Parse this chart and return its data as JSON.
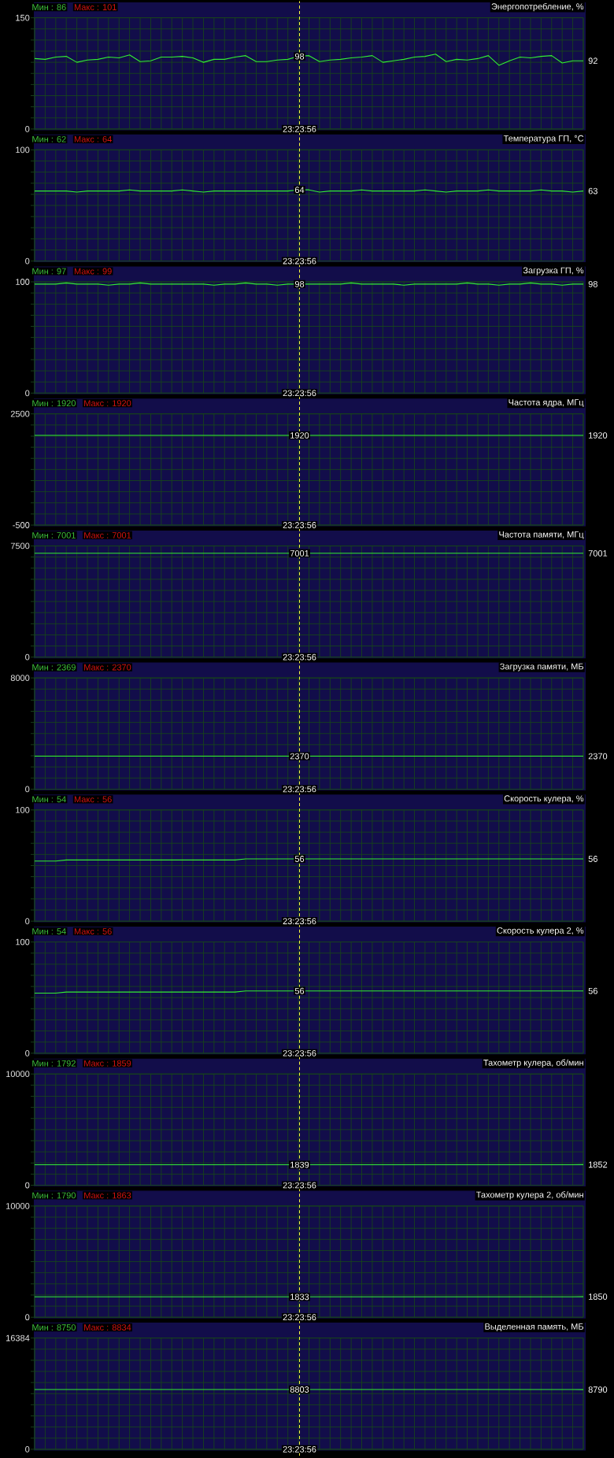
{
  "chart_data": [
    {
      "type": "line",
      "title": "Энергопотребление, %",
      "categories": [
        null,
        null,
        null,
        null,
        null,
        null,
        null,
        null,
        null,
        null,
        null,
        null,
        null,
        null,
        null,
        null,
        null,
        null,
        null,
        null,
        null,
        null,
        null,
        null,
        null,
        null,
        null,
        null,
        null,
        null,
        null,
        null,
        null,
        null,
        null,
        null,
        null,
        null,
        null,
        null,
        null,
        null,
        null,
        null,
        null,
        null,
        null,
        null,
        null,
        null,
        null,
        null,
        null
      ],
      "values": [
        95,
        94,
        97,
        98,
        90,
        93,
        94,
        97,
        96,
        100,
        91,
        92,
        97,
        97,
        98,
        96,
        90,
        94,
        94,
        97,
        99,
        91,
        91,
        93,
        94,
        98,
        99,
        91,
        93,
        94,
        96,
        97,
        99,
        90,
        92,
        94,
        97,
        98,
        101,
        91,
        94,
        93,
        95,
        99,
        86,
        92,
        97,
        96,
        98,
        99,
        89,
        92,
        92
      ],
      "color": "#33ee33",
      "ylim": [
        0,
        150
      ],
      "yticks": [
        0,
        {
          "value": 15,
          "label": null
        },
        {
          "value": 30,
          "label": null
        },
        {
          "value": 45,
          "label": null
        },
        {
          "value": 60,
          "label": null
        },
        {
          "value": 75,
          "label": null
        },
        {
          "value": 90,
          "label": null
        },
        {
          "value": 105,
          "label": null
        },
        {
          "value": 120,
          "label": null
        },
        {
          "value": 135,
          "label": null
        },
        150
      ],
      "grid": true,
      "annotations": [
        "Мин : 86",
        "Макс : 101",
        {
          "text": "98",
          "y": 98
        },
        "92",
        "23:23:56"
      ]
    },
    {
      "type": "line",
      "title": "Температура ГП, °C",
      "categories": [
        null,
        null,
        null,
        null,
        null,
        null,
        null,
        null,
        null,
        null,
        null,
        null,
        null,
        null,
        null,
        null,
        null,
        null,
        null,
        null,
        null,
        null,
        null,
        null,
        null,
        null,
        null,
        null,
        null,
        null,
        null,
        null,
        null,
        null,
        null,
        null,
        null,
        null,
        null,
        null,
        null,
        null,
        null,
        null,
        null,
        null,
        null,
        null,
        null,
        null,
        null,
        null,
        null
      ],
      "values": [
        63,
        63,
        63,
        63,
        62,
        63,
        63,
        63,
        63,
        64,
        63,
        63,
        63,
        63,
        64,
        63,
        62,
        63,
        63,
        63,
        63,
        63,
        63,
        63,
        63,
        64,
        64,
        62,
        63,
        63,
        63,
        64,
        63,
        63,
        63,
        63,
        63,
        64,
        63,
        62,
        63,
        63,
        63,
        64,
        63,
        63,
        63,
        63,
        64,
        63,
        63,
        62,
        63
      ],
      "color": "#33ee33",
      "ylim": [
        0,
        100
      ],
      "yticks": [
        0,
        {
          "value": 10,
          "label": null
        },
        {
          "value": 20,
          "label": null
        },
        {
          "value": 30,
          "label": null
        },
        {
          "value": 40,
          "label": null
        },
        {
          "value": 50,
          "label": null
        },
        {
          "value": 60,
          "label": null
        },
        {
          "value": 70,
          "label": null
        },
        {
          "value": 80,
          "label": null
        },
        {
          "value": 90,
          "label": null
        },
        100
      ],
      "grid": true,
      "annotations": [
        "Мин : 62",
        "Макс : 64",
        {
          "text": "64",
          "y": 64
        },
        "63",
        "23:23:56"
      ]
    },
    {
      "type": "line",
      "title": "Загрузка ГП, %",
      "categories": [
        null,
        null,
        null,
        null,
        null,
        null,
        null,
        null,
        null,
        null,
        null,
        null,
        null,
        null,
        null,
        null,
        null,
        null,
        null,
        null,
        null,
        null,
        null,
        null,
        null,
        null,
        null,
        null,
        null,
        null,
        null,
        null,
        null,
        null,
        null,
        null,
        null,
        null,
        null,
        null,
        null,
        null,
        null,
        null,
        null,
        null,
        null,
        null,
        null,
        null,
        null,
        null,
        null
      ],
      "values": [
        98,
        98,
        98,
        99,
        98,
        98,
        98,
        97,
        98,
        98,
        99,
        98,
        98,
        98,
        98,
        98,
        98,
        97,
        98,
        98,
        99,
        98,
        98,
        97,
        98,
        98,
        98,
        98,
        98,
        98,
        99,
        98,
        98,
        98,
        98,
        97,
        98,
        98,
        98,
        98,
        98,
        99,
        98,
        98,
        97,
        98,
        98,
        99,
        98,
        98,
        97,
        98,
        98
      ],
      "color": "#33ee33",
      "ylim": [
        0,
        100
      ],
      "yticks": [
        0,
        {
          "value": 10,
          "label": null
        },
        {
          "value": 20,
          "label": null
        },
        {
          "value": 30,
          "label": null
        },
        {
          "value": 40,
          "label": null
        },
        {
          "value": 50,
          "label": null
        },
        {
          "value": 60,
          "label": null
        },
        {
          "value": 70,
          "label": null
        },
        {
          "value": 80,
          "label": null
        },
        {
          "value": 90,
          "label": null
        },
        100
      ],
      "grid": true,
      "annotations": [
        "Мин : 97",
        "Макс : 99",
        {
          "text": "98",
          "y": 98
        },
        "98",
        "23:23:56"
      ]
    },
    {
      "type": "line",
      "title": "Частота ядра, МГц",
      "categories": [
        null,
        null,
        null,
        null,
        null,
        null,
        null,
        null,
        null,
        null,
        null,
        null,
        null,
        null,
        null,
        null,
        null,
        null,
        null,
        null,
        null,
        null,
        null,
        null,
        null,
        null,
        null,
        null,
        null,
        null,
        null,
        null,
        null,
        null,
        null,
        null,
        null,
        null,
        null,
        null,
        null,
        null,
        null,
        null,
        null,
        null,
        null,
        null,
        null,
        null,
        null,
        null,
        null
      ],
      "values": [
        1920,
        1920,
        1920,
        1920,
        1920,
        1920,
        1920,
        1920,
        1920,
        1920,
        1920,
        1920,
        1920,
        1920,
        1920,
        1920,
        1920,
        1920,
        1920,
        1920,
        1920,
        1920,
        1920,
        1920,
        1920,
        1920,
        1920,
        1920,
        1920,
        1920,
        1920,
        1920,
        1920,
        1920,
        1920,
        1920,
        1920,
        1920,
        1920,
        1920,
        1920,
        1920,
        1920,
        1920,
        1920,
        1920,
        1920,
        1920,
        1920,
        1920,
        1920,
        1920,
        1920
      ],
      "color": "#33ee33",
      "ylim": [
        -500,
        2500
      ],
      "yticks": [
        -500,
        {
          "value": -200,
          "label": null
        },
        {
          "value": 100,
          "label": null
        },
        {
          "value": 400,
          "label": null
        },
        {
          "value": 700,
          "label": null
        },
        {
          "value": 1000,
          "label": null
        },
        {
          "value": 1300,
          "label": null
        },
        {
          "value": 1600,
          "label": null
        },
        {
          "value": 1900,
          "label": null
        },
        {
          "value": 2200,
          "label": null
        },
        2500
      ],
      "grid": true,
      "annotations": [
        "Мин : 1920",
        "Макс : 1920",
        {
          "text": "1920",
          "y": 1920
        },
        "1920",
        "23:23:56"
      ]
    },
    {
      "type": "line",
      "title": "Частота памяти, МГц",
      "categories": [
        null,
        null,
        null,
        null,
        null,
        null,
        null,
        null,
        null,
        null,
        null,
        null,
        null,
        null,
        null,
        null,
        null,
        null,
        null,
        null,
        null,
        null,
        null,
        null,
        null,
        null,
        null,
        null,
        null,
        null,
        null,
        null,
        null,
        null,
        null,
        null,
        null,
        null,
        null,
        null,
        null,
        null,
        null,
        null,
        null,
        null,
        null,
        null,
        null,
        null,
        null,
        null,
        null
      ],
      "values": [
        7001,
        7001,
        7001,
        7001,
        7001,
        7001,
        7001,
        7001,
        7001,
        7001,
        7001,
        7001,
        7001,
        7001,
        7001,
        7001,
        7001,
        7001,
        7001,
        7001,
        7001,
        7001,
        7001,
        7001,
        7001,
        7001,
        7001,
        7001,
        7001,
        7001,
        7001,
        7001,
        7001,
        7001,
        7001,
        7001,
        7001,
        7001,
        7001,
        7001,
        7001,
        7001,
        7001,
        7001,
        7001,
        7001,
        7001,
        7001,
        7001,
        7001,
        7001,
        7001,
        7001
      ],
      "color": "#33ee33",
      "ylim": [
        0,
        7500
      ],
      "yticks": [
        0,
        {
          "value": 750,
          "label": null
        },
        {
          "value": 1500,
          "label": null
        },
        {
          "value": 2250,
          "label": null
        },
        {
          "value": 3000,
          "label": null
        },
        {
          "value": 3750,
          "label": null
        },
        {
          "value": 4500,
          "label": null
        },
        {
          "value": 5250,
          "label": null
        },
        {
          "value": 6000,
          "label": null
        },
        {
          "value": 6750,
          "label": null
        },
        7500
      ],
      "grid": true,
      "annotations": [
        "Мин : 7001",
        "Макс : 7001",
        {
          "text": "7001",
          "y": 7001
        },
        "7001",
        "23:23:56"
      ]
    },
    {
      "type": "line",
      "title": "Загрузка памяти, МБ",
      "categories": [
        null,
        null,
        null,
        null,
        null,
        null,
        null,
        null,
        null,
        null,
        null,
        null,
        null,
        null,
        null,
        null,
        null,
        null,
        null,
        null,
        null,
        null,
        null,
        null,
        null,
        null,
        null,
        null,
        null,
        null,
        null,
        null,
        null,
        null,
        null,
        null,
        null,
        null,
        null,
        null,
        null,
        null,
        null,
        null,
        null,
        null,
        null,
        null,
        null,
        null,
        null,
        null,
        null
      ],
      "values": [
        2370,
        2370,
        2370,
        2370,
        2370,
        2370,
        2370,
        2370,
        2370,
        2370,
        2370,
        2370,
        2370,
        2370,
        2370,
        2370,
        2370,
        2370,
        2370,
        2370,
        2370,
        2370,
        2370,
        2370,
        2370,
        2370,
        2370,
        2370,
        2370,
        2370,
        2370,
        2370,
        2370,
        2370,
        2370,
        2370,
        2370,
        2370,
        2370,
        2370,
        2370,
        2370,
        2370,
        2370,
        2370,
        2370,
        2370,
        2370,
        2370,
        2370,
        2370,
        2370,
        2370
      ],
      "color": "#33ee33",
      "ylim": [
        0,
        8000
      ],
      "yticks": [
        0,
        {
          "value": 800,
          "label": null
        },
        {
          "value": 1600,
          "label": null
        },
        {
          "value": 2400,
          "label": null
        },
        {
          "value": 3200,
          "label": null
        },
        {
          "value": 4000,
          "label": null
        },
        {
          "value": 4800,
          "label": null
        },
        {
          "value": 5600,
          "label": null
        },
        {
          "value": 6400,
          "label": null
        },
        {
          "value": 7200,
          "label": null
        },
        8000
      ],
      "grid": true,
      "annotations": [
        "Мин : 2369",
        "Макс : 2370",
        {
          "text": "2370",
          "y": 2370
        },
        "2370",
        "23:23:56"
      ]
    },
    {
      "type": "line",
      "title": "Скорость кулера, %",
      "categories": [
        null,
        null,
        null,
        null,
        null,
        null,
        null,
        null,
        null,
        null,
        null,
        null,
        null,
        null,
        null,
        null,
        null,
        null,
        null,
        null,
        null,
        null,
        null,
        null,
        null,
        null,
        null,
        null,
        null,
        null,
        null,
        null,
        null,
        null,
        null,
        null,
        null,
        null,
        null,
        null,
        null,
        null,
        null,
        null,
        null,
        null,
        null,
        null,
        null,
        null,
        null,
        null,
        null
      ],
      "values": [
        54,
        54,
        54,
        55,
        55,
        55,
        55,
        55,
        55,
        55,
        55,
        55,
        55,
        55,
        55,
        55,
        55,
        55,
        55,
        55,
        56,
        56,
        56,
        56,
        56,
        56,
        56,
        56,
        56,
        56,
        56,
        56,
        56,
        56,
        56,
        56,
        56,
        56,
        56,
        56,
        56,
        56,
        56,
        56,
        56,
        56,
        56,
        56,
        56,
        56,
        56,
        56,
        56
      ],
      "color": "#33ee33",
      "ylim": [
        0,
        100
      ],
      "yticks": [
        0,
        {
          "value": 10,
          "label": null
        },
        {
          "value": 20,
          "label": null
        },
        {
          "value": 30,
          "label": null
        },
        {
          "value": 40,
          "label": null
        },
        {
          "value": 50,
          "label": null
        },
        {
          "value": 60,
          "label": null
        },
        {
          "value": 70,
          "label": null
        },
        {
          "value": 80,
          "label": null
        },
        {
          "value": 90,
          "label": null
        },
        100
      ],
      "grid": true,
      "annotations": [
        "Мин : 54",
        "Макс : 56",
        {
          "text": "56",
          "y": 56
        },
        "56",
        "23:23:56"
      ]
    },
    {
      "type": "line",
      "title": "Скорость кулера 2, %",
      "categories": [
        null,
        null,
        null,
        null,
        null,
        null,
        null,
        null,
        null,
        null,
        null,
        null,
        null,
        null,
        null,
        null,
        null,
        null,
        null,
        null,
        null,
        null,
        null,
        null,
        null,
        null,
        null,
        null,
        null,
        null,
        null,
        null,
        null,
        null,
        null,
        null,
        null,
        null,
        null,
        null,
        null,
        null,
        null,
        null,
        null,
        null,
        null,
        null,
        null,
        null,
        null,
        null,
        null
      ],
      "values": [
        54,
        54,
        54,
        55,
        55,
        55,
        55,
        55,
        55,
        55,
        55,
        55,
        55,
        55,
        55,
        55,
        55,
        55,
        55,
        55,
        56,
        56,
        56,
        56,
        56,
        56,
        56,
        56,
        56,
        56,
        56,
        56,
        56,
        56,
        56,
        56,
        56,
        56,
        56,
        56,
        56,
        56,
        56,
        56,
        56,
        56,
        56,
        56,
        56,
        56,
        56,
        56,
        56
      ],
      "color": "#33ee33",
      "ylim": [
        0,
        100
      ],
      "yticks": [
        0,
        {
          "value": 10,
          "label": null
        },
        {
          "value": 20,
          "label": null
        },
        {
          "value": 30,
          "label": null
        },
        {
          "value": 40,
          "label": null
        },
        {
          "value": 50,
          "label": null
        },
        {
          "value": 60,
          "label": null
        },
        {
          "value": 70,
          "label": null
        },
        {
          "value": 80,
          "label": null
        },
        {
          "value": 90,
          "label": null
        },
        100
      ],
      "grid": true,
      "annotations": [
        "Мин : 54",
        "Макс : 56",
        {
          "text": "56",
          "y": 56
        },
        "56",
        "23:23:56"
      ]
    },
    {
      "type": "line",
      "title": "Тахометр кулера, об/мин",
      "categories": [
        null,
        null,
        null,
        null,
        null,
        null,
        null,
        null,
        null,
        null,
        null,
        null,
        null,
        null,
        null,
        null,
        null,
        null,
        null,
        null,
        null,
        null,
        null,
        null,
        null,
        null,
        null,
        null,
        null,
        null,
        null,
        null,
        null,
        null,
        null,
        null,
        null,
        null,
        null,
        null,
        null,
        null,
        null,
        null,
        null,
        null,
        null,
        null,
        null,
        null,
        null,
        null,
        null
      ],
      "values": [
        1839,
        1839,
        1839,
        1839,
        1839,
        1839,
        1839,
        1839,
        1839,
        1839,
        1839,
        1839,
        1839,
        1839,
        1839,
        1839,
        1839,
        1839,
        1839,
        1839,
        1839,
        1839,
        1839,
        1839,
        1839,
        1839,
        1839,
        1839,
        1839,
        1839,
        1839,
        1839,
        1839,
        1839,
        1839,
        1839,
        1839,
        1839,
        1839,
        1839,
        1839,
        1839,
        1839,
        1839,
        1839,
        1839,
        1839,
        1839,
        1839,
        1839,
        1839,
        1839,
        1852
      ],
      "color": "#33ee33",
      "ylim": [
        0,
        10000
      ],
      "yticks": [
        0,
        {
          "value": 1000,
          "label": null
        },
        {
          "value": 2000,
          "label": null
        },
        {
          "value": 3000,
          "label": null
        },
        {
          "value": 4000,
          "label": null
        },
        {
          "value": 5000,
          "label": null
        },
        {
          "value": 6000,
          "label": null
        },
        {
          "value": 7000,
          "label": null
        },
        {
          "value": 8000,
          "label": null
        },
        {
          "value": 9000,
          "label": null
        },
        10000
      ],
      "grid": true,
      "annotations": [
        "Мин : 1792",
        "Макс : 1859",
        {
          "text": "1839",
          "y": 1839
        },
        "1852",
        "23:23:56"
      ]
    },
    {
      "type": "line",
      "title": "Тахометр кулера 2, об/мин",
      "categories": [
        null,
        null,
        null,
        null,
        null,
        null,
        null,
        null,
        null,
        null,
        null,
        null,
        null,
        null,
        null,
        null,
        null,
        null,
        null,
        null,
        null,
        null,
        null,
        null,
        null,
        null,
        null,
        null,
        null,
        null,
        null,
        null,
        null,
        null,
        null,
        null,
        null,
        null,
        null,
        null,
        null,
        null,
        null,
        null,
        null,
        null,
        null,
        null,
        null,
        null,
        null,
        null,
        null
      ],
      "values": [
        1833,
        1833,
        1833,
        1833,
        1833,
        1833,
        1833,
        1833,
        1833,
        1833,
        1833,
        1833,
        1833,
        1833,
        1833,
        1833,
        1833,
        1833,
        1833,
        1833,
        1833,
        1833,
        1833,
        1833,
        1833,
        1833,
        1833,
        1833,
        1833,
        1833,
        1833,
        1833,
        1833,
        1833,
        1833,
        1833,
        1833,
        1833,
        1833,
        1833,
        1833,
        1833,
        1833,
        1833,
        1833,
        1833,
        1833,
        1833,
        1833,
        1833,
        1833,
        1833,
        1850
      ],
      "color": "#33ee33",
      "ylim": [
        0,
        10000
      ],
      "yticks": [
        0,
        {
          "value": 1000,
          "label": null
        },
        {
          "value": 2000,
          "label": null
        },
        {
          "value": 3000,
          "label": null
        },
        {
          "value": 4000,
          "label": null
        },
        {
          "value": 5000,
          "label": null
        },
        {
          "value": 6000,
          "label": null
        },
        {
          "value": 7000,
          "label": null
        },
        {
          "value": 8000,
          "label": null
        },
        {
          "value": 9000,
          "label": null
        },
        10000
      ],
      "grid": true,
      "annotations": [
        "Мин : 1790",
        "Макс : 1863",
        {
          "text": "1833",
          "y": 1833
        },
        "1850",
        "23:23:56"
      ]
    },
    {
      "type": "line",
      "title": "Выделенная память, МБ",
      "categories": [
        null,
        null,
        null,
        null,
        null,
        null,
        null,
        null,
        null,
        null,
        null,
        null,
        null,
        null,
        null,
        null,
        null,
        null,
        null,
        null,
        null,
        null,
        null,
        null,
        null,
        null,
        null,
        null,
        null,
        null,
        null,
        null,
        null,
        null,
        null,
        null,
        null,
        null,
        null,
        null,
        null,
        null,
        null,
        null,
        null,
        null,
        null,
        null,
        null,
        null,
        null,
        null,
        null
      ],
      "values": [
        8803,
        8803,
        8803,
        8803,
        8803,
        8803,
        8803,
        8803,
        8803,
        8803,
        8803,
        8803,
        8803,
        8803,
        8803,
        8803,
        8803,
        8803,
        8803,
        8803,
        8803,
        8803,
        8803,
        8803,
        8803,
        8803,
        8803,
        8803,
        8803,
        8803,
        8803,
        8803,
        8803,
        8803,
        8803,
        8803,
        8803,
        8803,
        8803,
        8803,
        8803,
        8803,
        8803,
        8803,
        8803,
        8803,
        8803,
        8803,
        8803,
        8803,
        8803,
        8803,
        8790
      ],
      "color": "#33ee33",
      "ylim": [
        0,
        16384
      ],
      "yticks": [
        0,
        {
          "value": 1638.4,
          "label": null
        },
        {
          "value": 3276.8,
          "label": null
        },
        {
          "value": 4915.2,
          "label": null
        },
        {
          "value": 6553.6,
          "label": null
        },
        {
          "value": 8192,
          "label": null
        },
        {
          "value": 9830.4,
          "label": null
        },
        {
          "value": 11468.8,
          "label": null
        },
        {
          "value": 13107.2,
          "label": null
        },
        {
          "value": 14745.6,
          "label": null
        },
        16384
      ],
      "grid": true,
      "annotations": [
        "Мин : 8750",
        "Макс : 8834",
        {
          "text": "8803",
          "y": 8803
        },
        "8790",
        "23:23:56"
      ]
    }
  ]
}
